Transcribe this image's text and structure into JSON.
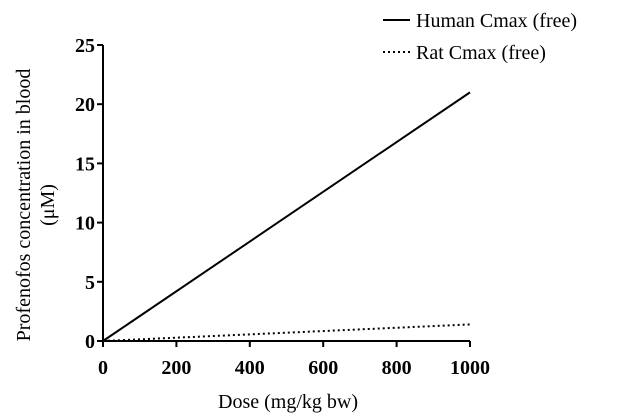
{
  "chart_data": {
    "type": "line",
    "xlabel": "Dose (mg/kg bw)",
    "ylabel_line1": "Profenofos concentration in blood",
    "ylabel_line2": "(μM)",
    "xlim": [
      0,
      1000
    ],
    "ylim": [
      0,
      25
    ],
    "xticks": [
      0,
      200,
      400,
      600,
      800,
      1000
    ],
    "yticks": [
      0,
      5,
      10,
      15,
      20,
      25
    ],
    "grid": false,
    "legend_position": "top-right",
    "series": [
      {
        "name": "Human Cmax  (free)",
        "style": "solid",
        "color": "#000000",
        "x": [
          0,
          1000
        ],
        "y": [
          0,
          21
        ]
      },
      {
        "name": "Rat Cmax (free)",
        "style": "dotted",
        "color": "#000000",
        "x": [
          0,
          1000
        ],
        "y": [
          0,
          1.4
        ]
      }
    ]
  }
}
